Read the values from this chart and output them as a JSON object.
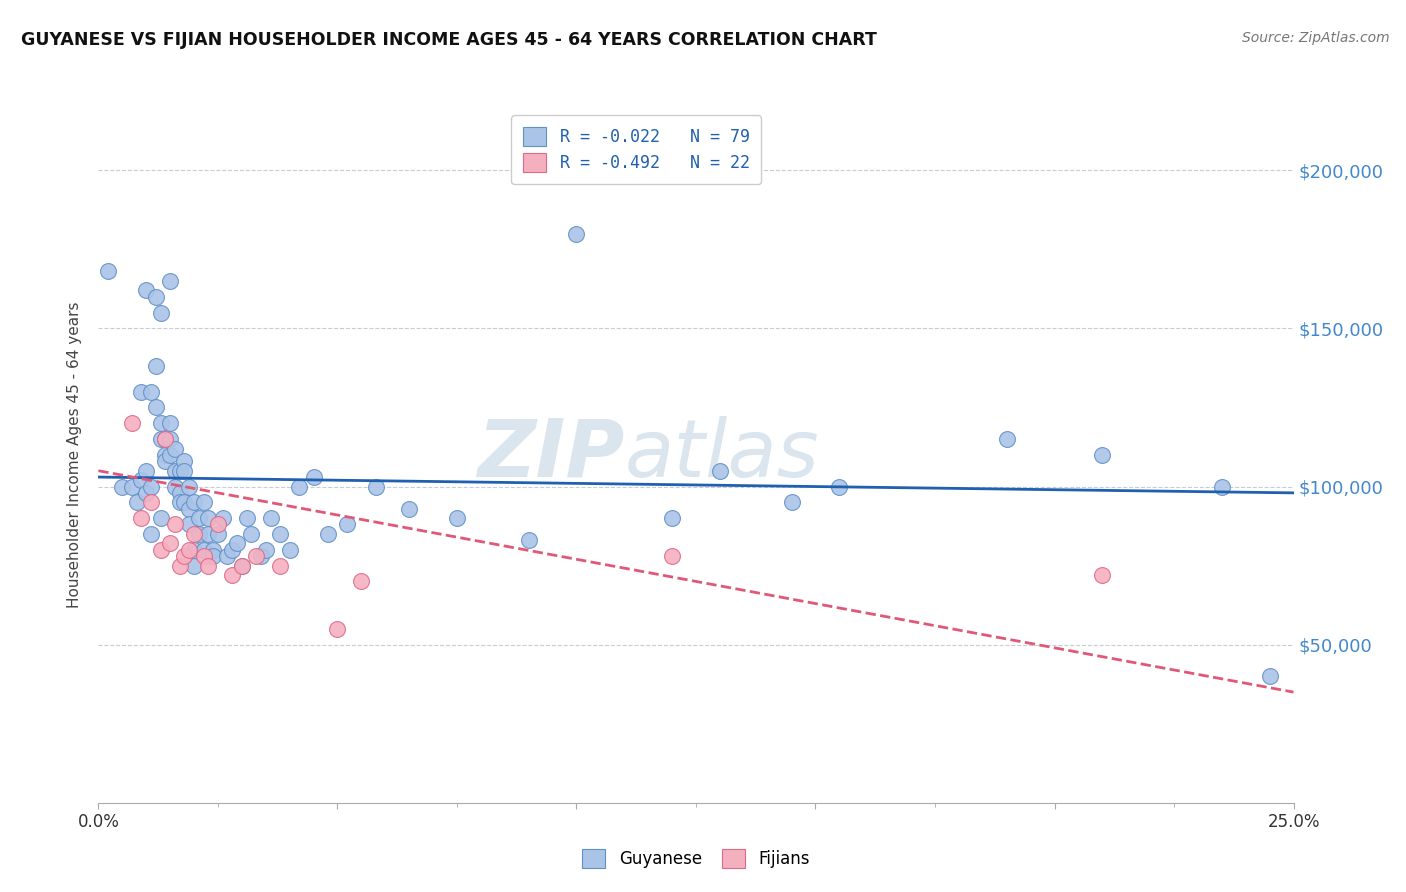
{
  "title": "GUYANESE VS FIJIAN HOUSEHOLDER INCOME AGES 45 - 64 YEARS CORRELATION CHART",
  "source": "Source: ZipAtlas.com",
  "ylabel": "Householder Income Ages 45 - 64 years",
  "ytick_labels": [
    "$50,000",
    "$100,000",
    "$150,000",
    "$200,000"
  ],
  "ytick_values": [
    50000,
    100000,
    150000,
    200000
  ],
  "ylim": [
    0,
    220000
  ],
  "xlim": [
    0.0,
    0.25
  ],
  "watermark_zip": "ZIP",
  "watermark_atlas": "atlas",
  "legend_line1": "R = -0.022   N = 79",
  "legend_line2": "R = -0.492   N = 22",
  "guyanese_label": "Guyanese",
  "fijian_label": "Fijians",
  "guyanese_face": "#aac4e8",
  "guyanese_edge": "#6090c8",
  "fijian_face": "#f5b0c0",
  "fijian_edge": "#e06888",
  "trendline_blue": "#2060b0",
  "trendline_pink": "#e05878",
  "grid_color": "#c8ccd8",
  "background_color": "#ffffff",
  "legend_text_color": "#2060b0",
  "right_tick_color": "#4488cc",
  "guyanese_x": [
    0.002,
    0.005,
    0.007,
    0.008,
    0.009,
    0.009,
    0.01,
    0.01,
    0.01,
    0.011,
    0.011,
    0.011,
    0.012,
    0.012,
    0.012,
    0.013,
    0.013,
    0.013,
    0.013,
    0.014,
    0.014,
    0.014,
    0.015,
    0.015,
    0.015,
    0.015,
    0.016,
    0.016,
    0.016,
    0.017,
    0.017,
    0.017,
    0.018,
    0.018,
    0.018,
    0.019,
    0.019,
    0.019,
    0.02,
    0.02,
    0.02,
    0.021,
    0.021,
    0.022,
    0.022,
    0.023,
    0.023,
    0.024,
    0.024,
    0.025,
    0.026,
    0.027,
    0.028,
    0.029,
    0.03,
    0.031,
    0.032,
    0.034,
    0.035,
    0.036,
    0.038,
    0.04,
    0.042,
    0.045,
    0.048,
    0.052,
    0.058,
    0.065,
    0.075,
    0.09,
    0.1,
    0.12,
    0.13,
    0.145,
    0.155,
    0.19,
    0.21,
    0.235,
    0.245
  ],
  "guyanese_y": [
    168000,
    100000,
    100000,
    95000,
    102000,
    130000,
    98000,
    105000,
    162000,
    100000,
    85000,
    130000,
    125000,
    138000,
    160000,
    155000,
    120000,
    115000,
    90000,
    110000,
    115000,
    108000,
    120000,
    115000,
    110000,
    165000,
    105000,
    100000,
    112000,
    98000,
    105000,
    95000,
    108000,
    95000,
    105000,
    93000,
    100000,
    88000,
    95000,
    80000,
    75000,
    90000,
    85000,
    80000,
    95000,
    90000,
    85000,
    80000,
    78000,
    85000,
    90000,
    78000,
    80000,
    82000,
    75000,
    90000,
    85000,
    78000,
    80000,
    90000,
    85000,
    80000,
    100000,
    103000,
    85000,
    88000,
    100000,
    93000,
    90000,
    83000,
    180000,
    90000,
    105000,
    95000,
    100000,
    115000,
    110000,
    100000,
    40000
  ],
  "fijian_x": [
    0.007,
    0.009,
    0.011,
    0.013,
    0.014,
    0.015,
    0.016,
    0.017,
    0.018,
    0.019,
    0.02,
    0.022,
    0.023,
    0.025,
    0.028,
    0.03,
    0.033,
    0.038,
    0.05,
    0.055,
    0.12,
    0.21
  ],
  "fijian_y": [
    120000,
    90000,
    95000,
    80000,
    115000,
    82000,
    88000,
    75000,
    78000,
    80000,
    85000,
    78000,
    75000,
    88000,
    72000,
    75000,
    78000,
    75000,
    55000,
    70000,
    78000,
    72000
  ],
  "blue_trendline_intercept": 103000,
  "blue_trendline_slope": -20000,
  "pink_trendline_intercept": 105000,
  "pink_trendline_slope": -280000
}
